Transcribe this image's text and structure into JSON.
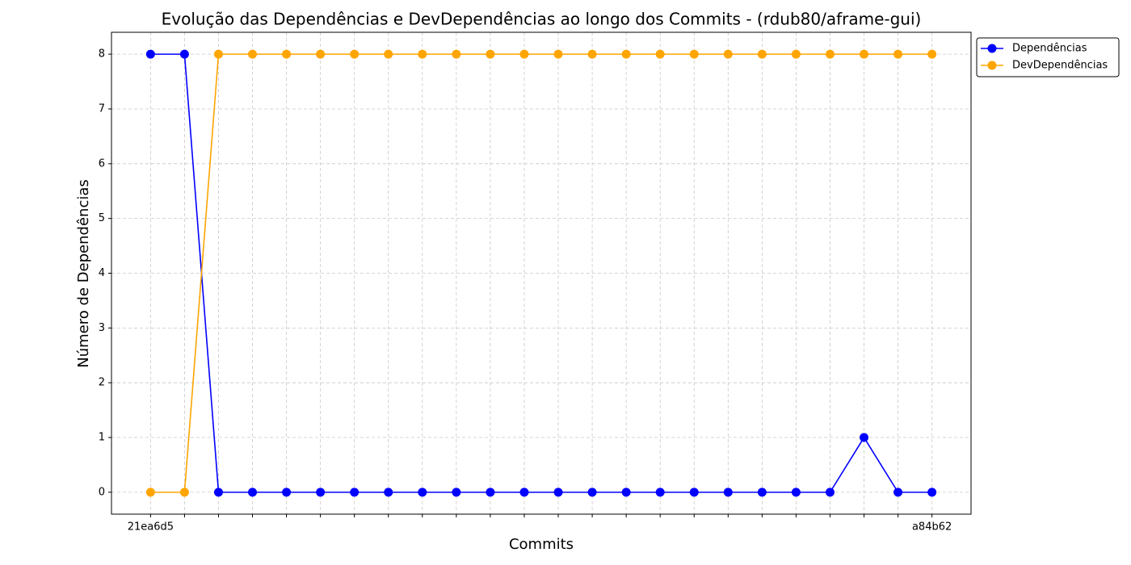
{
  "chart_data": {
    "type": "line",
    "title": "Evolução das Dependências e DevDependências ao longo dos Commits - (rdub80/aframe-gui)",
    "xlabel": "Commits",
    "ylabel": "Número de Dependências",
    "categories": [
      "21ea6d5",
      null,
      null,
      null,
      null,
      null,
      null,
      null,
      null,
      null,
      null,
      null,
      null,
      null,
      null,
      null,
      null,
      null,
      null,
      null,
      null,
      null,
      null,
      "a84b62"
    ],
    "series": [
      {
        "name": "Dependências",
        "color": "#0000ff",
        "values": [
          8,
          8,
          0,
          0,
          0,
          0,
          0,
          0,
          0,
          0,
          0,
          0,
          0,
          0,
          0,
          0,
          0,
          0,
          0,
          0,
          0,
          1,
          0,
          0
        ]
      },
      {
        "name": "DevDependências",
        "color": "#ffa500",
        "values": [
          0,
          0,
          8,
          8,
          8,
          8,
          8,
          8,
          8,
          8,
          8,
          8,
          8,
          8,
          8,
          8,
          8,
          8,
          8,
          8,
          8,
          8,
          8,
          8
        ]
      }
    ],
    "ylim": [
      -0.4,
      8.4
    ],
    "yticks": [
      0,
      1,
      2,
      3,
      4,
      5,
      6,
      7,
      8
    ],
    "grid": true,
    "legend": "upper right outside"
  }
}
